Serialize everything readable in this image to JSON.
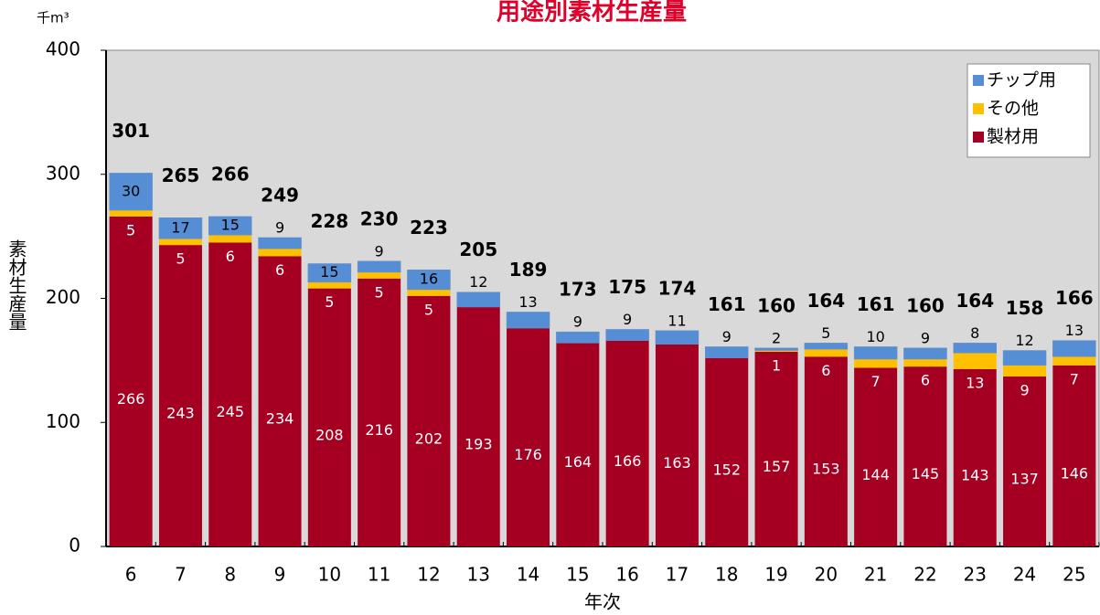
{
  "chart_data": {
    "type": "stacked_bar",
    "title": "用途別素材生産量",
    "unit_label": "千m³",
    "y_label": "素材生産量",
    "x_label": "年次",
    "categories": [
      "6",
      "7",
      "8",
      "9",
      "10",
      "11",
      "12",
      "13",
      "14",
      "15",
      "16",
      "17",
      "18",
      "19",
      "20",
      "21",
      "22",
      "23",
      "24",
      "25"
    ],
    "series": [
      {
        "name": "製材用",
        "color": "#a50021",
        "values": [
          266,
          243,
          245,
          234,
          208,
          216,
          202,
          193,
          176,
          164,
          166,
          163,
          152,
          157,
          153,
          144,
          145,
          143,
          137,
          146
        ]
      },
      {
        "name": "その他",
        "color": "#ffc000",
        "values": [
          5,
          5,
          6,
          6,
          5,
          5,
          5,
          null,
          null,
          null,
          null,
          null,
          null,
          1,
          6,
          7,
          6,
          13,
          9,
          7
        ]
      },
      {
        "name": "チップ用",
        "color": "#558ed5",
        "values": [
          30,
          17,
          15,
          9,
          15,
          9,
          16,
          12,
          13,
          9,
          9,
          11,
          9,
          2,
          5,
          10,
          9,
          8,
          12,
          13
        ]
      }
    ],
    "totals": [
      301,
      265,
      266,
      249,
      228,
      230,
      223,
      205,
      189,
      173,
      175,
      174,
      161,
      160,
      164,
      161,
      160,
      164,
      158,
      166
    ],
    "ylim": [
      0,
      400
    ],
    "yticks": [
      0,
      100,
      200,
      300,
      400
    ],
    "grid": false,
    "legend": "top-right"
  }
}
